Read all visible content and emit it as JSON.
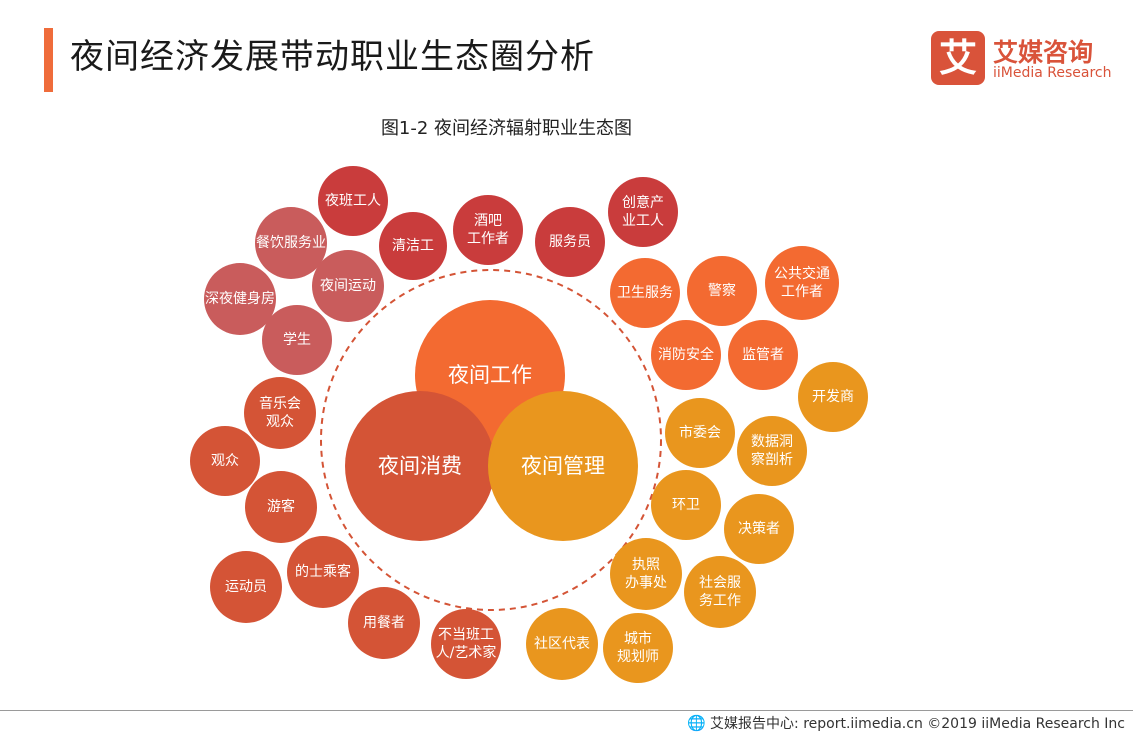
{
  "page": {
    "title": "夜间经济发展带动职业生态圈分析",
    "caption": "图1-2 夜间经济辐射职业生态图"
  },
  "logo": {
    "mark": "艾",
    "name_cn": "艾媒咨询",
    "name_en": "iiMedia Research"
  },
  "footer": {
    "icon": "globe-icon",
    "text": "艾媒报告中心: report.iimedia.cn  ©2019  iiMedia Research  Inc"
  },
  "colors": {
    "accent": "#ef6c3b",
    "logo_red": "#d9533a",
    "work": "#f36a31",
    "consume": "#d45436",
    "manage": "#e9961e",
    "consume_light": "#c95c5c",
    "consume_dark": "#c93c3c",
    "dashed": "#d45436"
  },
  "diagram": {
    "center": [
      {
        "label": "夜间工作",
        "group": "work"
      },
      {
        "label": "夜间消费",
        "group": "consume"
      },
      {
        "label": "夜间管理",
        "group": "manage"
      }
    ],
    "nodes": [
      {
        "label": "夜班工人",
        "group": "consume_dark"
      },
      {
        "label": "餐饮服务业",
        "group": "consume_light"
      },
      {
        "label": "清洁工",
        "group": "consume_dark"
      },
      {
        "label": "酒吧\n工作者",
        "group": "consume_dark"
      },
      {
        "label": "服务员",
        "group": "consume_dark"
      },
      {
        "label": "创意产\n业工人",
        "group": "consume_dark"
      },
      {
        "label": "深夜健身房",
        "group": "consume_light"
      },
      {
        "label": "夜间运动",
        "group": "consume_light"
      },
      {
        "label": "学生",
        "group": "consume_light"
      },
      {
        "label": "卫生服务",
        "group": "work"
      },
      {
        "label": "警察",
        "group": "work"
      },
      {
        "label": "公共交通\n工作者",
        "group": "work"
      },
      {
        "label": "消防安全",
        "group": "work"
      },
      {
        "label": "监管者",
        "group": "work"
      },
      {
        "label": "开发商",
        "group": "manage"
      },
      {
        "label": "音乐会\n观众",
        "group": "consume"
      },
      {
        "label": "观众",
        "group": "consume"
      },
      {
        "label": "游客",
        "group": "consume"
      },
      {
        "label": "运动员",
        "group": "consume"
      },
      {
        "label": "的士乘客",
        "group": "consume"
      },
      {
        "label": "用餐者",
        "group": "consume"
      },
      {
        "label": "不当班工\n人/艺术家",
        "group": "consume"
      },
      {
        "label": "市委会",
        "group": "manage"
      },
      {
        "label": "数据洞\n察剖析",
        "group": "manage"
      },
      {
        "label": "环卫",
        "group": "manage"
      },
      {
        "label": "决策者",
        "group": "manage"
      },
      {
        "label": "执照\n办事处",
        "group": "manage"
      },
      {
        "label": "社会服\n务工作",
        "group": "manage"
      },
      {
        "label": "社区代表",
        "group": "manage"
      },
      {
        "label": "城市\n规划师",
        "group": "manage"
      }
    ]
  }
}
